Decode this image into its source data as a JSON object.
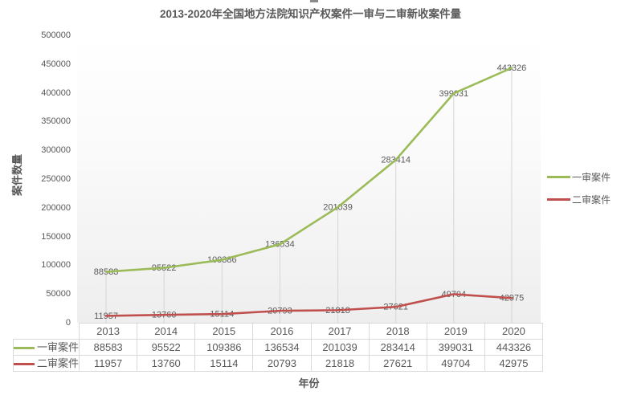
{
  "title": "2013-2020年全国地方法院知识产权案件一审与二审新收案件量",
  "chart_data": {
    "type": "line",
    "title": "2013-2020年全国地方法院知识产权案件一审与二审新收案件量",
    "xlabel": "年份",
    "ylabel": "案件数量",
    "categories": [
      "2013",
      "2014",
      "2015",
      "2016",
      "2017",
      "2018",
      "2019",
      "2020"
    ],
    "series": [
      {
        "name": "二审案件",
        "color": "#c0504d",
        "values": [
          11957,
          13760,
          15114,
          20793,
          21818,
          27621,
          49704,
          42975
        ]
      },
      {
        "name": "一审案件",
        "color": "#9bbb59",
        "values": [
          88583,
          95522,
          109386,
          136534,
          201039,
          283414,
          399031,
          443326
        ]
      }
    ],
    "ylim": [
      0,
      500000
    ],
    "ytick_step": 50000,
    "legend_position": "right",
    "grid": false,
    "drop_lines": true,
    "data_labels": true,
    "data_table": true
  },
  "colors": {
    "text": "#595959",
    "border": "#d9d9d9",
    "drop_line": "#d6d6d6",
    "plot_bg_top": "#ffffff",
    "plot_bg_bottom": "#eeeeee"
  }
}
